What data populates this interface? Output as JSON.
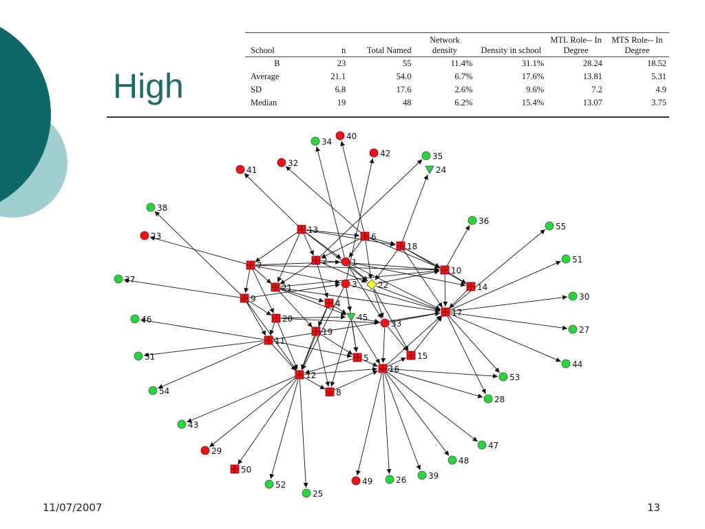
{
  "title": "High",
  "footer": {
    "date": "11/07/2007",
    "page": "13"
  },
  "table": {
    "headers": [
      "School",
      "n",
      "Total Named",
      "Network density",
      "Density in school",
      "MTL Role-- In Degree",
      "MTS Role-- In Degree"
    ],
    "rows": [
      [
        "B",
        "23",
        "55",
        "11.4%",
        "31.1%",
        "28.24",
        "18.52"
      ],
      [
        "Average",
        "21.1",
        "54.0",
        "6.7%",
        "17.6%",
        "13.81",
        "5.31"
      ],
      [
        "SD",
        "6.8",
        "17.6",
        "2.6%",
        "9.6%",
        "7.2",
        "4.9"
      ],
      [
        "Median",
        "19",
        "48",
        "6.2%",
        "15.4%",
        "13.07",
        "3.75"
      ]
    ]
  },
  "colors": {
    "accent": "#1f6b6a",
    "decor_dark": "#0e6867",
    "decor_light": "#9fcfd0",
    "red": "#e8141a",
    "green": "#22d83a",
    "yellow": "#ffff22",
    "edge": "#111111"
  },
  "network": {
    "nodes": [
      {
        "id": "1",
        "shape": "circle",
        "color": "red"
      },
      {
        "id": "2",
        "shape": "square",
        "color": "red"
      },
      {
        "id": "3",
        "shape": "circle",
        "color": "red"
      },
      {
        "id": "4",
        "shape": "square",
        "color": "red"
      },
      {
        "id": "5",
        "shape": "square",
        "color": "red"
      },
      {
        "id": "6",
        "shape": "square",
        "color": "red"
      },
      {
        "id": "7",
        "shape": "square",
        "color": "red"
      },
      {
        "id": "8",
        "shape": "square",
        "color": "red"
      },
      {
        "id": "9",
        "shape": "square",
        "color": "red"
      },
      {
        "id": "10",
        "shape": "square",
        "color": "red"
      },
      {
        "id": "11",
        "shape": "square",
        "color": "red"
      },
      {
        "id": "12",
        "shape": "square",
        "color": "red"
      },
      {
        "id": "13",
        "shape": "square",
        "color": "red"
      },
      {
        "id": "14",
        "shape": "square",
        "color": "red"
      },
      {
        "id": "15",
        "shape": "square",
        "color": "red"
      },
      {
        "id": "16",
        "shape": "square",
        "color": "red"
      },
      {
        "id": "17",
        "shape": "square",
        "color": "red"
      },
      {
        "id": "18",
        "shape": "square",
        "color": "red"
      },
      {
        "id": "19",
        "shape": "square",
        "color": "red"
      },
      {
        "id": "20",
        "shape": "square",
        "color": "red"
      },
      {
        "id": "21",
        "shape": "square",
        "color": "red"
      },
      {
        "id": "22",
        "shape": "diamond",
        "color": "yellow"
      },
      {
        "id": "23",
        "shape": "circle",
        "color": "red"
      },
      {
        "id": "24",
        "shape": "triangle",
        "color": "green"
      },
      {
        "id": "25",
        "shape": "circle",
        "color": "green"
      },
      {
        "id": "26",
        "shape": "circle",
        "color": "green"
      },
      {
        "id": "27",
        "shape": "circle",
        "color": "green"
      },
      {
        "id": "28",
        "shape": "circle",
        "color": "green"
      },
      {
        "id": "29",
        "shape": "circle",
        "color": "red"
      },
      {
        "id": "30",
        "shape": "circle",
        "color": "green"
      },
      {
        "id": "31",
        "shape": "circle",
        "color": "green"
      },
      {
        "id": "32",
        "shape": "circle",
        "color": "red"
      },
      {
        "id": "33",
        "shape": "circle",
        "color": "red"
      },
      {
        "id": "34",
        "shape": "circle",
        "color": "green"
      },
      {
        "id": "35",
        "shape": "circle",
        "color": "green"
      },
      {
        "id": "36",
        "shape": "circle",
        "color": "green"
      },
      {
        "id": "37",
        "shape": "circle",
        "color": "green"
      },
      {
        "id": "38",
        "shape": "circle",
        "color": "green"
      },
      {
        "id": "39",
        "shape": "circle",
        "color": "green"
      },
      {
        "id": "40",
        "shape": "circle",
        "color": "red"
      },
      {
        "id": "41",
        "shape": "circle",
        "color": "red"
      },
      {
        "id": "42",
        "shape": "circle",
        "color": "red"
      },
      {
        "id": "43",
        "shape": "circle",
        "color": "green"
      },
      {
        "id": "44",
        "shape": "circle",
        "color": "green"
      },
      {
        "id": "45",
        "shape": "triangle",
        "color": "green"
      },
      {
        "id": "46",
        "shape": "circle",
        "color": "green"
      },
      {
        "id": "47",
        "shape": "circle",
        "color": "green"
      },
      {
        "id": "48",
        "shape": "circle",
        "color": "green"
      },
      {
        "id": "49",
        "shape": "circle",
        "color": "red"
      },
      {
        "id": "50",
        "shape": "square",
        "color": "red"
      },
      {
        "id": "51",
        "shape": "circle",
        "color": "green"
      },
      {
        "id": "52",
        "shape": "circle",
        "color": "green"
      },
      {
        "id": "53",
        "shape": "circle",
        "color": "green"
      },
      {
        "id": "54",
        "shape": "circle",
        "color": "green"
      },
      {
        "id": "55",
        "shape": "circle",
        "color": "green"
      }
    ],
    "edges": [
      [
        "13",
        "41"
      ],
      [
        "6",
        "32"
      ],
      [
        "1",
        "34"
      ],
      [
        "6",
        "40"
      ],
      [
        "3",
        "42"
      ],
      [
        "2",
        "35"
      ],
      [
        "18",
        "24"
      ],
      [
        "10",
        "36"
      ],
      [
        "17",
        "55"
      ],
      [
        "17",
        "51"
      ],
      [
        "17",
        "30"
      ],
      [
        "17",
        "27"
      ],
      [
        "17",
        "44"
      ],
      [
        "17",
        "53"
      ],
      [
        "17",
        "28"
      ],
      [
        "9",
        "38"
      ],
      [
        "7",
        "23"
      ],
      [
        "9",
        "37"
      ],
      [
        "11",
        "46"
      ],
      [
        "11",
        "31"
      ],
      [
        "11",
        "54"
      ],
      [
        "12",
        "43"
      ],
      [
        "12",
        "29"
      ],
      [
        "12",
        "50"
      ],
      [
        "12",
        "52"
      ],
      [
        "12",
        "25"
      ],
      [
        "16",
        "49"
      ],
      [
        "16",
        "26"
      ],
      [
        "16",
        "39"
      ],
      [
        "16",
        "48"
      ],
      [
        "16",
        "47"
      ],
      [
        "16",
        "28"
      ],
      [
        "16",
        "53"
      ],
      [
        "13",
        "6"
      ],
      [
        "13",
        "2"
      ],
      [
        "13",
        "1"
      ],
      [
        "13",
        "7"
      ],
      [
        "13",
        "18"
      ],
      [
        "13",
        "21"
      ],
      [
        "13",
        "22"
      ],
      [
        "6",
        "18"
      ],
      [
        "6",
        "1"
      ],
      [
        "6",
        "2"
      ],
      [
        "6",
        "22"
      ],
      [
        "6",
        "10"
      ],
      [
        "7",
        "21"
      ],
      [
        "7",
        "9"
      ],
      [
        "7",
        "1"
      ],
      [
        "7",
        "10"
      ],
      [
        "7",
        "3"
      ],
      [
        "7",
        "20"
      ],
      [
        "2",
        "22"
      ],
      [
        "2",
        "21"
      ],
      [
        "2",
        "10"
      ],
      [
        "2",
        "4"
      ],
      [
        "1",
        "22"
      ],
      [
        "1",
        "14"
      ],
      [
        "1",
        "17"
      ],
      [
        "1",
        "33"
      ],
      [
        "18",
        "10"
      ],
      [
        "18",
        "14"
      ],
      [
        "18",
        "17"
      ],
      [
        "18",
        "22"
      ],
      [
        "21",
        "19"
      ],
      [
        "21",
        "10"
      ],
      [
        "21",
        "17"
      ],
      [
        "21",
        "45"
      ],
      [
        "21",
        "4"
      ],
      [
        "9",
        "20"
      ],
      [
        "9",
        "11"
      ],
      [
        "9",
        "12"
      ],
      [
        "9",
        "3"
      ],
      [
        "3",
        "17"
      ],
      [
        "3",
        "45"
      ],
      [
        "3",
        "5"
      ],
      [
        "3",
        "12"
      ],
      [
        "22",
        "17"
      ],
      [
        "22",
        "33"
      ],
      [
        "22",
        "15"
      ],
      [
        "22",
        "10"
      ],
      [
        "4",
        "12"
      ],
      [
        "4",
        "45"
      ],
      [
        "4",
        "19"
      ],
      [
        "20",
        "11"
      ],
      [
        "20",
        "45"
      ],
      [
        "20",
        "33"
      ],
      [
        "20",
        "12"
      ],
      [
        "45",
        "33"
      ],
      [
        "45",
        "5"
      ],
      [
        "45",
        "8"
      ],
      [
        "45",
        "16"
      ],
      [
        "33",
        "16"
      ],
      [
        "33",
        "17"
      ],
      [
        "33",
        "15"
      ],
      [
        "19",
        "12"
      ],
      [
        "19",
        "5"
      ],
      [
        "19",
        "8"
      ],
      [
        "11",
        "12"
      ],
      [
        "11",
        "5"
      ],
      [
        "11",
        "17"
      ],
      [
        "5",
        "16"
      ],
      [
        "5",
        "12"
      ],
      [
        "15",
        "17"
      ],
      [
        "14",
        "17"
      ],
      [
        "10",
        "14"
      ],
      [
        "10",
        "17"
      ],
      [
        "12",
        "16"
      ],
      [
        "12",
        "8"
      ],
      [
        "8",
        "16"
      ],
      [
        "16",
        "17"
      ],
      [
        "16",
        "15"
      ]
    ]
  }
}
